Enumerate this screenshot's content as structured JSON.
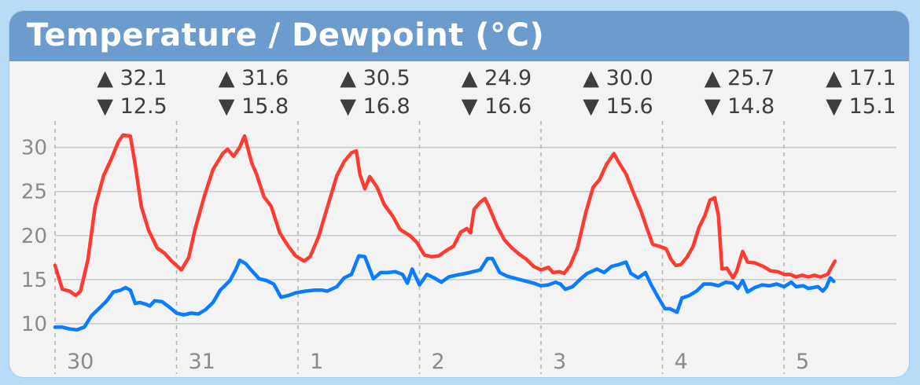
{
  "title": "Temperature / Dewpoint (°C)",
  "colors": {
    "temperature": "#ff3b30",
    "dewpoint": "#0a7cff",
    "header": "#6c9ccd"
  },
  "days": [
    {
      "label": "30",
      "high": "▲ 32.1",
      "low": "▼ 12.5"
    },
    {
      "label": "31",
      "high": "▲ 31.6",
      "low": "▼ 15.8"
    },
    {
      "label": "1",
      "high": "▲ 30.5",
      "low": "▼ 16.8"
    },
    {
      "label": "2",
      "high": "▲ 24.9",
      "low": "▼ 16.6"
    },
    {
      "label": "3",
      "high": "▲ 30.0",
      "low": "▼ 15.6"
    },
    {
      "label": "4",
      "high": "▲ 25.7",
      "low": "▼ 14.8"
    },
    {
      "label": "5",
      "high": "▲ 17.1",
      "low": "▼ 15.1"
    }
  ],
  "chart_data": {
    "type": "line",
    "yticks": [
      "10",
      "15",
      "20",
      "25",
      "30"
    ],
    "ylim": [
      7.5,
      33
    ],
    "xlim": [
      -0.03,
      7
    ],
    "grid": true,
    "x_unit": "days since start of 30th",
    "series": [
      {
        "key": "temperature",
        "points": [
          [
            0.0,
            16.6
          ],
          [
            0.06,
            13.9
          ],
          [
            0.12,
            13.7
          ],
          [
            0.17,
            13.2
          ],
          [
            0.21,
            13.7
          ],
          [
            0.27,
            17.2
          ],
          [
            0.33,
            23.3
          ],
          [
            0.4,
            26.8
          ],
          [
            0.47,
            28.9
          ],
          [
            0.52,
            30.6
          ],
          [
            0.56,
            31.4
          ],
          [
            0.62,
            31.3
          ],
          [
            0.66,
            28
          ],
          [
            0.71,
            23.3
          ],
          [
            0.77,
            20.6
          ],
          [
            0.84,
            18.6
          ],
          [
            0.9,
            18.0
          ],
          [
            0.96,
            17.1
          ],
          [
            1.04,
            16.1
          ],
          [
            1.1,
            17.5
          ],
          [
            1.15,
            20.6
          ],
          [
            1.23,
            24.5
          ],
          [
            1.3,
            27.5
          ],
          [
            1.38,
            29.3
          ],
          [
            1.42,
            29.8
          ],
          [
            1.47,
            29.0
          ],
          [
            1.52,
            30.0
          ],
          [
            1.56,
            31.3
          ],
          [
            1.62,
            28.2
          ],
          [
            1.66,
            26.9
          ],
          [
            1.72,
            24.4
          ],
          [
            1.78,
            23.3
          ],
          [
            1.85,
            20.3
          ],
          [
            1.92,
            18.8
          ],
          [
            1.98,
            17.7
          ],
          [
            2.05,
            17.1
          ],
          [
            2.1,
            17.6
          ],
          [
            2.17,
            19.9
          ],
          [
            2.25,
            23.6
          ],
          [
            2.32,
            26.8
          ],
          [
            2.38,
            28.4
          ],
          [
            2.44,
            29.4
          ],
          [
            2.48,
            29.6
          ],
          [
            2.51,
            26.9
          ],
          [
            2.55,
            25.3
          ],
          [
            2.59,
            26.7
          ],
          [
            2.65,
            25.5
          ],
          [
            2.71,
            23.5
          ],
          [
            2.78,
            22.2
          ],
          [
            2.84,
            20.7
          ],
          [
            2.92,
            20.0
          ],
          [
            2.98,
            19.2
          ],
          [
            3.04,
            17.8
          ],
          [
            3.1,
            17.6
          ],
          [
            3.16,
            17.7
          ],
          [
            3.22,
            18.3
          ],
          [
            3.28,
            18.8
          ],
          [
            3.34,
            20.4
          ],
          [
            3.39,
            20.8
          ],
          [
            3.42,
            20.3
          ],
          [
            3.45,
            23.0
          ],
          [
            3.5,
            23.8
          ],
          [
            3.54,
            24.2
          ],
          [
            3.58,
            23.0
          ],
          [
            3.64,
            21.0
          ],
          [
            3.7,
            19.5
          ],
          [
            3.76,
            18.6
          ],
          [
            3.82,
            17.9
          ],
          [
            3.88,
            17.3
          ],
          [
            3.94,
            16.5
          ],
          [
            4.0,
            16.1
          ],
          [
            4.06,
            16.4
          ],
          [
            4.1,
            15.8
          ],
          [
            4.15,
            15.9
          ],
          [
            4.19,
            15.7
          ],
          [
            4.24,
            16.6
          ],
          [
            4.3,
            18.6
          ],
          [
            4.37,
            22.7
          ],
          [
            4.43,
            25.5
          ],
          [
            4.48,
            26.3
          ],
          [
            4.54,
            28.1
          ],
          [
            4.6,
            29.3
          ],
          [
            4.64,
            28.3
          ],
          [
            4.7,
            27.0
          ],
          [
            4.76,
            24.9
          ],
          [
            4.82,
            22.9
          ],
          [
            4.87,
            20.9
          ],
          [
            4.92,
            19.0
          ],
          [
            4.97,
            18.8
          ],
          [
            5.03,
            18.5
          ],
          [
            5.07,
            17.3
          ],
          [
            5.11,
            16.6
          ],
          [
            5.15,
            16.7
          ],
          [
            5.2,
            17.5
          ],
          [
            5.25,
            18.7
          ],
          [
            5.3,
            20.9
          ],
          [
            5.35,
            22.3
          ],
          [
            5.39,
            24.0
          ],
          [
            5.43,
            24.3
          ],
          [
            5.46,
            22.3
          ],
          [
            5.49,
            16.2
          ],
          [
            5.53,
            16.3
          ],
          [
            5.58,
            15.2
          ],
          [
            5.61,
            15.9
          ],
          [
            5.66,
            18.2
          ],
          [
            5.7,
            17.0
          ],
          [
            5.76,
            16.9
          ],
          [
            5.83,
            16.5
          ],
          [
            5.89,
            16.0
          ],
          [
            5.95,
            15.9
          ],
          [
            6.0,
            15.6
          ],
          [
            6.05,
            15.6
          ],
          [
            6.1,
            15.3
          ],
          [
            6.15,
            15.5
          ],
          [
            6.2,
            15.3
          ],
          [
            6.25,
            15.5
          ],
          [
            6.3,
            15.3
          ],
          [
            6.36,
            15.6
          ],
          [
            6.39,
            16.4
          ],
          [
            6.42,
            17.1
          ]
        ]
      },
      {
        "key": "dewpoint",
        "points": [
          [
            0.0,
            9.6
          ],
          [
            0.06,
            9.6
          ],
          [
            0.12,
            9.4
          ],
          [
            0.18,
            9.3
          ],
          [
            0.24,
            9.6
          ],
          [
            0.3,
            10.9
          ],
          [
            0.36,
            11.7
          ],
          [
            0.42,
            12.5
          ],
          [
            0.48,
            13.6
          ],
          [
            0.54,
            13.8
          ],
          [
            0.58,
            14.1
          ],
          [
            0.62,
            13.8
          ],
          [
            0.66,
            12.3
          ],
          [
            0.7,
            12.4
          ],
          [
            0.75,
            12.2
          ],
          [
            0.78,
            12.0
          ],
          [
            0.82,
            12.6
          ],
          [
            0.88,
            12.5
          ],
          [
            0.94,
            11.9
          ],
          [
            1.0,
            11.2
          ],
          [
            1.06,
            11.0
          ],
          [
            1.12,
            11.2
          ],
          [
            1.18,
            11.1
          ],
          [
            1.24,
            11.6
          ],
          [
            1.3,
            12.4
          ],
          [
            1.36,
            13.8
          ],
          [
            1.44,
            14.9
          ],
          [
            1.49,
            16.2
          ],
          [
            1.52,
            17.2
          ],
          [
            1.57,
            16.8
          ],
          [
            1.62,
            16.0
          ],
          [
            1.68,
            15.1
          ],
          [
            1.74,
            14.9
          ],
          [
            1.8,
            14.5
          ],
          [
            1.86,
            13.0
          ],
          [
            1.92,
            13.2
          ],
          [
            1.98,
            13.5
          ],
          [
            2.06,
            13.7
          ],
          [
            2.14,
            13.8
          ],
          [
            2.2,
            13.8
          ],
          [
            2.24,
            13.7
          ],
          [
            2.32,
            14.2
          ],
          [
            2.38,
            15.2
          ],
          [
            2.44,
            15.6
          ],
          [
            2.5,
            17.7
          ],
          [
            2.55,
            17.6
          ],
          [
            2.62,
            15.1
          ],
          [
            2.68,
            15.8
          ],
          [
            2.74,
            15.8
          ],
          [
            2.8,
            15.9
          ],
          [
            2.86,
            15.6
          ],
          [
            2.9,
            14.6
          ],
          [
            2.94,
            16.2
          ],
          [
            3.0,
            14.4
          ],
          [
            3.06,
            15.6
          ],
          [
            3.12,
            15.2
          ],
          [
            3.18,
            14.7
          ],
          [
            3.24,
            15.3
          ],
          [
            3.3,
            15.5
          ],
          [
            3.38,
            15.7
          ],
          [
            3.44,
            15.9
          ],
          [
            3.5,
            16.1
          ],
          [
            3.56,
            17.4
          ],
          [
            3.6,
            17.4
          ],
          [
            3.66,
            15.8
          ],
          [
            3.72,
            15.4
          ],
          [
            3.8,
            15.1
          ],
          [
            3.88,
            14.8
          ],
          [
            3.94,
            14.6
          ],
          [
            4.0,
            14.3
          ],
          [
            4.06,
            14.4
          ],
          [
            4.12,
            14.7
          ],
          [
            4.16,
            14.5
          ],
          [
            4.2,
            13.9
          ],
          [
            4.26,
            14.2
          ],
          [
            4.32,
            15.0
          ],
          [
            4.38,
            15.7
          ],
          [
            4.46,
            16.2
          ],
          [
            4.52,
            15.8
          ],
          [
            4.58,
            16.5
          ],
          [
            4.64,
            16.7
          ],
          [
            4.7,
            17.0
          ],
          [
            4.74,
            15.7
          ],
          [
            4.8,
            15.2
          ],
          [
            4.86,
            15.8
          ],
          [
            4.9,
            14.6
          ],
          [
            4.96,
            13.1
          ],
          [
            5.02,
            11.7
          ],
          [
            5.06,
            11.7
          ],
          [
            5.12,
            11.3
          ],
          [
            5.16,
            12.9
          ],
          [
            5.22,
            13.2
          ],
          [
            5.28,
            13.7
          ],
          [
            5.34,
            14.5
          ],
          [
            5.4,
            14.5
          ],
          [
            5.46,
            14.3
          ],
          [
            5.52,
            14.7
          ],
          [
            5.58,
            14.6
          ],
          [
            5.62,
            14.0
          ],
          [
            5.66,
            14.9
          ],
          [
            5.7,
            13.6
          ],
          [
            5.76,
            14.1
          ],
          [
            5.82,
            14.4
          ],
          [
            5.88,
            14.3
          ],
          [
            5.94,
            14.5
          ],
          [
            6.0,
            14.2
          ],
          [
            6.06,
            14.7
          ],
          [
            6.1,
            14.2
          ],
          [
            6.16,
            14.3
          ],
          [
            6.2,
            14.0
          ],
          [
            6.24,
            14.1
          ],
          [
            6.28,
            14.2
          ],
          [
            6.32,
            13.7
          ],
          [
            6.35,
            14.2
          ],
          [
            6.38,
            15.2
          ],
          [
            6.41,
            14.8
          ]
        ]
      }
    ]
  }
}
